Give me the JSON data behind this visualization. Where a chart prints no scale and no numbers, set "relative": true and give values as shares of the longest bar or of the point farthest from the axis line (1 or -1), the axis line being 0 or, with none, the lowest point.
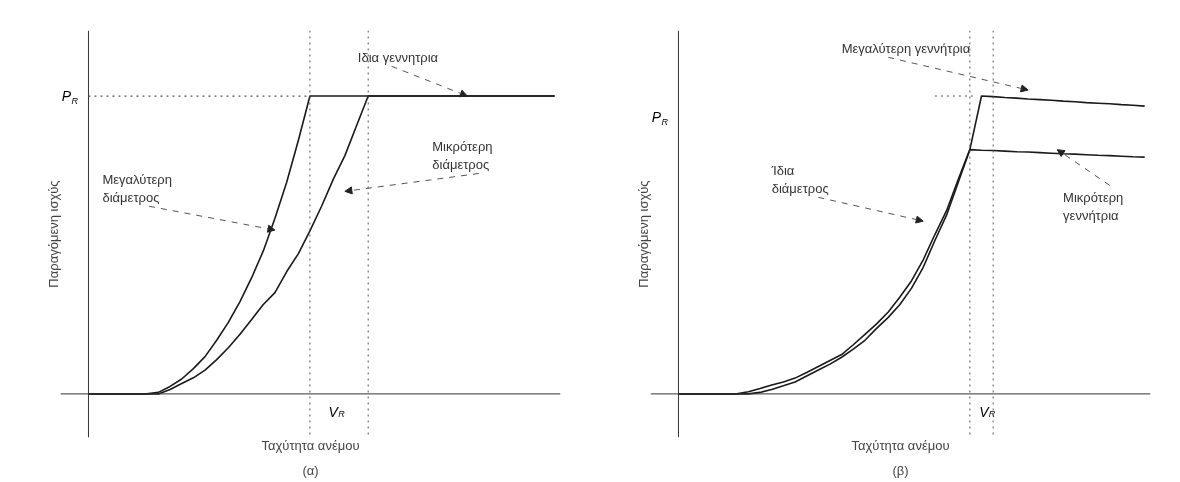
{
  "chart_data": [
    {
      "type": "line",
      "title": "(α)",
      "xlabel": "Ταχύτητα ανέμου",
      "ylabel": "Παραγόμενη ισχύς",
      "relative": true,
      "categories": [
        null,
        null,
        null,
        null,
        null,
        null,
        null,
        null,
        null,
        null,
        null,
        null,
        null,
        null,
        null,
        null,
        null,
        null,
        null,
        null,
        null,
        null,
        null,
        null,
        null,
        null,
        null,
        null,
        null,
        null,
        null,
        null,
        null,
        null,
        null,
        null,
        null,
        null,
        null,
        null,
        null
      ],
      "series": [
        {
          "color": "#1a1a1a",
          "values": [
            0,
            0,
            0,
            0,
            0,
            0,
            0.005,
            0.025,
            0.05,
            0.085,
            0.125,
            0.18,
            0.24,
            0.31,
            0.39,
            0.48,
            0.59,
            0.71,
            0.85,
            1,
            1,
            1,
            1,
            1,
            1,
            1,
            1,
            1,
            1,
            1,
            1,
            1,
            1,
            1,
            1,
            1,
            1,
            1,
            1,
            1,
            1
          ]
        },
        {
          "color": "#1a1a1a",
          "values": [
            0,
            0,
            0,
            0,
            0,
            0,
            0,
            0.015,
            0.035,
            0.054,
            0.08,
            0.115,
            0.155,
            0.2,
            0.25,
            0.3,
            0.34,
            0.41,
            0.47,
            0.547,
            0.63,
            0.72,
            0.8,
            0.9,
            1,
            1,
            1,
            1,
            1,
            1,
            1,
            1,
            1,
            1,
            1,
            1,
            1,
            1,
            1,
            1,
            1
          ]
        }
      ],
      "ref_lines": [
        {
          "axis": "y",
          "value": 1,
          "label": "P$_{R}$",
          "line_style": "dotted"
        }
      ],
      "annotations": [
        "Ιδια γεννητρια",
        "Μεγαλύτερη διάμετρος",
        "Μικρότερη διάμετρος",
        "V$_{R}$"
      ],
      "marker": "none",
      "line_style": "solid"
    },
    {
      "type": "line",
      "title": "(β)",
      "xlabel": "Ταχύτητα ανέμου",
      "ylabel": "Παραγόμενη ισχύς",
      "relative": true,
      "categories": [
        null,
        null,
        null,
        null,
        null,
        null,
        null,
        null,
        null,
        null,
        null,
        null,
        null,
        null,
        null,
        null,
        null,
        null,
        null,
        null,
        null,
        null,
        null,
        null,
        null,
        null,
        null,
        null,
        null,
        null,
        null,
        null,
        null,
        null,
        null,
        null,
        null,
        null,
        null,
        null,
        null
      ],
      "series": [
        {
          "color": "#1a1a1a",
          "values": [
            0,
            0,
            0,
            0,
            0,
            0,
            0.007,
            0.018,
            0.03,
            0.04,
            0.053,
            0.072,
            0.092,
            0.112,
            0.132,
            0.165,
            0.2,
            0.235,
            0.275,
            0.325,
            0.38,
            0.45,
            0.535,
            0.615,
            0.72,
            0.82,
            1,
            0.998,
            0.995,
            0.993,
            0.99,
            0.988,
            0.986,
            0.983,
            0.981,
            0.978,
            0.976,
            0.974,
            0.971,
            0.969,
            0.966
          ]
        },
        {
          "color": "#1a1a1a",
          "values": [
            0,
            0,
            0,
            0,
            0,
            0,
            0,
            0.005,
            0.015,
            0.027,
            0.04,
            0.06,
            0.08,
            0.1,
            0.123,
            0.15,
            0.18,
            0.22,
            0.257,
            0.3,
            0.355,
            0.425,
            0.515,
            0.6,
            0.71,
            0.82,
            0.818,
            0.817,
            0.815,
            0.813,
            0.812,
            0.81,
            0.808,
            0.806,
            0.805,
            0.803,
            0.801,
            0.8,
            0.798,
            0.796,
            0.795
          ]
        }
      ],
      "annotations": [
        "Μεγαλύτερη γεννήτρια",
        "Ίδια διάμετρος",
        "Μικρότερη γεννήτρια",
        "V$_{R}$",
        "P$_{R}$"
      ],
      "marker": "none",
      "line_style": "solid"
    }
  ]
}
